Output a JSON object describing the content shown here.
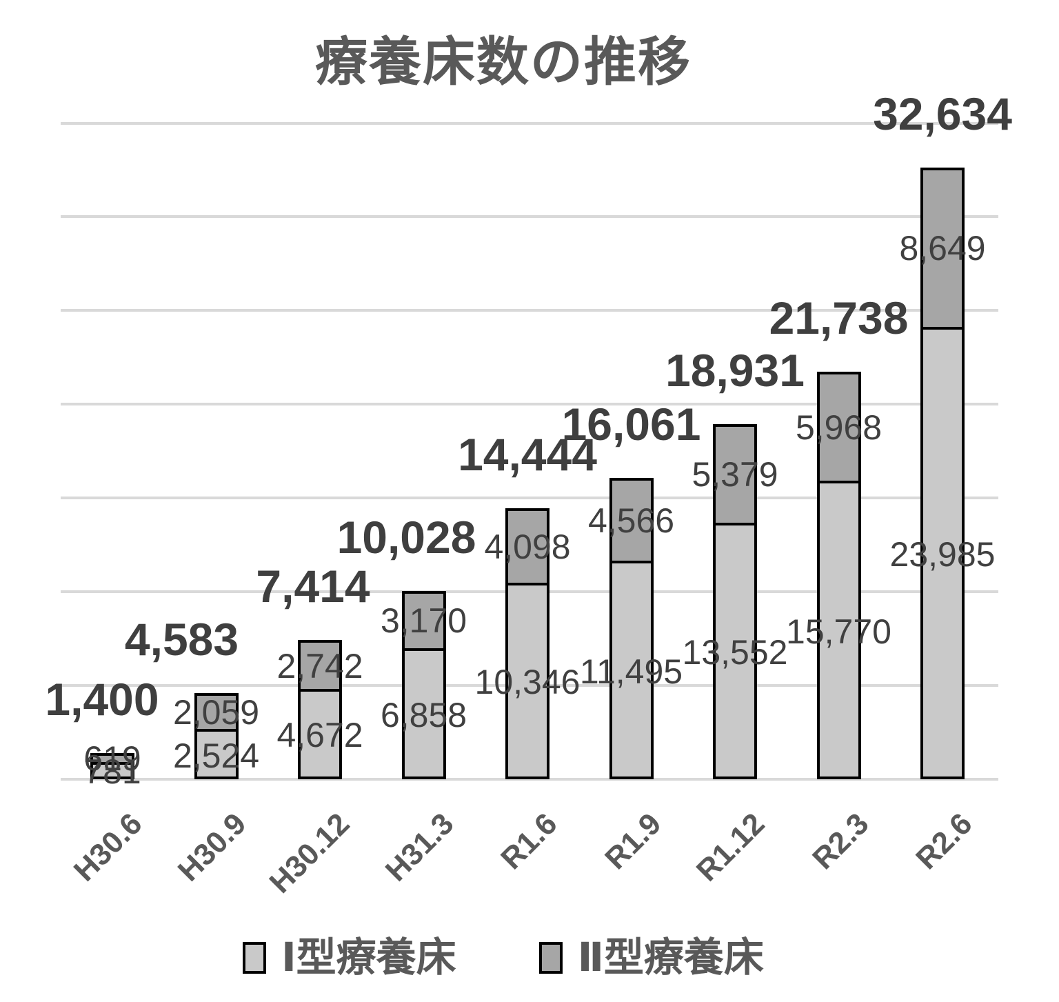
{
  "title": "療養床数の推移",
  "legend": {
    "items": [
      {
        "label": "Ⅰ型療養床"
      },
      {
        "label": "Ⅱ型療養床"
      }
    ]
  },
  "chart_data": {
    "type": "bar",
    "stacked": true,
    "title": "療養床数の推移",
    "categories": [
      "H30.6",
      "H30.9",
      "H30.12",
      "H31.3",
      "R1.6",
      "R1.9",
      "R1.12",
      "R2.3",
      "R2.6"
    ],
    "series": [
      {
        "name": "Ⅰ型療養床",
        "color": "#C9C9C9",
        "values": [
          781,
          2524,
          4672,
          6858,
          10346,
          11495,
          13552,
          15770,
          23985
        ],
        "labels": [
          "781",
          "2,524",
          "4,672",
          "6,858",
          "10,346",
          "11,495",
          "13,552",
          "15,770",
          "23,985"
        ]
      },
      {
        "name": "Ⅱ型療養床",
        "color": "#A6A6A6",
        "values": [
          619,
          2059,
          2742,
          3170,
          4098,
          4566,
          5379,
          5968,
          8649
        ],
        "labels": [
          "619",
          "2,059",
          "2,742",
          "3,170",
          "4,098",
          "4,566",
          "5,379",
          "5,968",
          "8,649"
        ]
      }
    ],
    "totals": [
      1400,
      4583,
      7414,
      10028,
      14444,
      16061,
      18931,
      21738,
      32634
    ],
    "total_labels": [
      "1,400",
      "4,583",
      "7,414",
      "10,028",
      "14,444",
      "16,061",
      "18,931",
      "21,738",
      "32,634"
    ],
    "xlabel": "",
    "ylabel": "",
    "ylim": [
      0,
      35000
    ],
    "gridline_step": 5000,
    "grid": true,
    "y_axis_labels_visible": false,
    "legend_position": "bottom",
    "colors": {
      "background": "#FFFFFF",
      "gridline": "#D9D9D9",
      "bar_border": "#000000",
      "segment_label": "#404040",
      "total_label": "#3F3F3F",
      "axis_label": "#595959",
      "title": "#595959"
    }
  }
}
